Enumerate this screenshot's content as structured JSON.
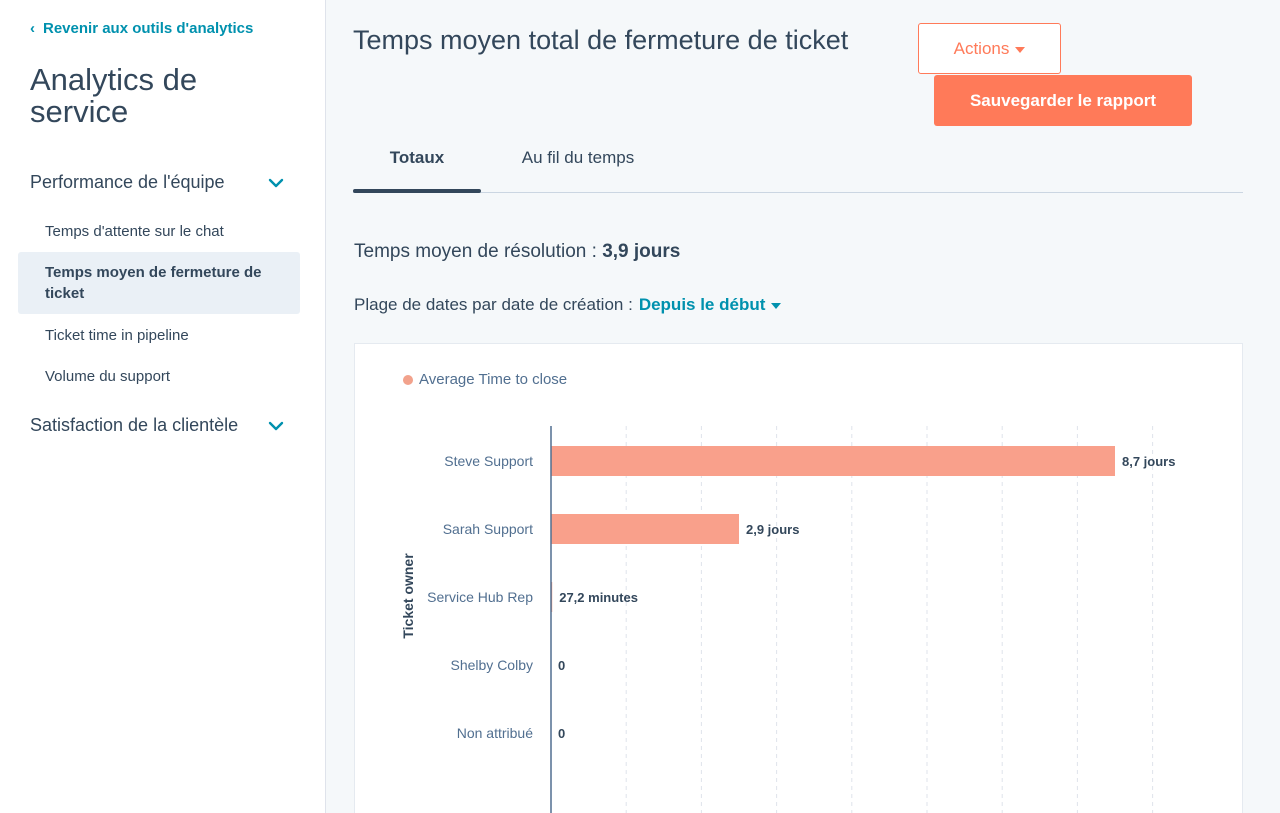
{
  "sidebar": {
    "back_label": "Revenir aux outils d'analytics",
    "title": "Analytics de service",
    "sections": [
      {
        "label": "Performance de l'équipe",
        "items": [
          {
            "label": "Temps d'attente sur le chat"
          },
          {
            "label": "Temps moyen de fermeture de ticket",
            "active": true
          },
          {
            "label": "Ticket time in pipeline"
          },
          {
            "label": "Volume du support"
          }
        ]
      },
      {
        "label": "Satisfaction de la clientèle"
      }
    ]
  },
  "header": {
    "title": "Temps moyen total de fermeture de ticket",
    "actions_label": "Actions",
    "save_label": "Sauvegarder le rapport"
  },
  "tabs": [
    {
      "label": "Totaux",
      "active": true
    },
    {
      "label": "Au fil du temps"
    }
  ],
  "summary": {
    "metric_label": "Temps moyen de résolution :",
    "metric_value": "3,9 jours",
    "date_label": "Plage de dates par date de création :",
    "date_value": "Depuis le début"
  },
  "colors": {
    "accent": "#ff7a59",
    "link": "#0091ae",
    "bar": "#f9a08b",
    "text": "#33475b"
  },
  "chart_data": {
    "type": "bar",
    "orientation": "horizontal",
    "ylabel": "Ticket owner",
    "legend": [
      "Average Time to close"
    ],
    "grid": true,
    "categories": [
      "Steve Support",
      "Sarah Support",
      "Service Hub Rep",
      "Shelby Colby",
      "Non attribué"
    ],
    "values": [
      8.7,
      2.9,
      0.0189,
      0,
      0
    ],
    "unit": "jours",
    "data_labels": [
      "8,7 jours",
      "2,9 jours",
      "27,2 minutes",
      "0",
      "0"
    ],
    "xlim": [
      0,
      9
    ]
  }
}
